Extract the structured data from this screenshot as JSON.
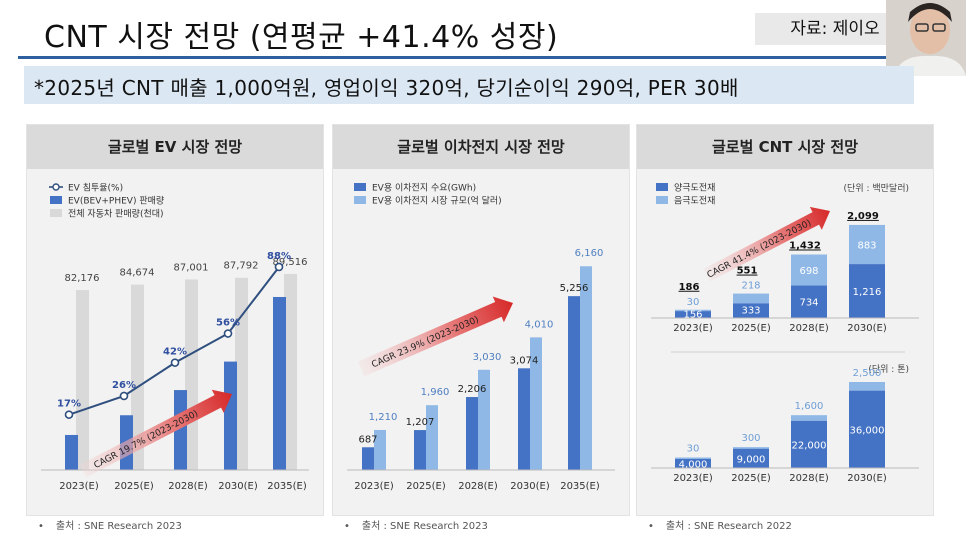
{
  "header": {
    "title": "CNT 시장 전망 (연평균 +41.4% 성장)",
    "source": "자료: 제이오",
    "subtitle": "*2025년 CNT 매출 1,000억원, 영업이익 320억, 당기순이익 290억, PER 30배"
  },
  "colors": {
    "dark_blue": "#4472c4",
    "light_blue": "#8fb8e6",
    "gray_bar": "#d9d9d9",
    "title_rule": "#2e5f9e",
    "subtitle_bg": "#dbe7f3",
    "line": "#2f4f7f"
  },
  "chart_data": [
    {
      "type": "bar",
      "title": "글로벌 EV 시장 전망",
      "categories": [
        "2023(E)",
        "2025(E)",
        "2028(E)",
        "2030(E)",
        "2035(E)"
      ],
      "series": [
        {
          "name": "EV 침투율(%)",
          "kind": "line",
          "values": [
            17,
            26,
            42,
            56,
            88
          ],
          "labels": [
            "17%",
            "26%",
            "42%",
            "56%",
            "88%"
          ]
        },
        {
          "name": "EV(BEV+PHEV) 판매량",
          "kind": "bar",
          "values": [
            16000,
            25000,
            36500,
            49500,
            79000
          ]
        },
        {
          "name": "전체 자동차 판매량(천대)",
          "kind": "bar",
          "values": [
            82176,
            84674,
            87001,
            87792,
            89516
          ],
          "labels": [
            "82,176",
            "84,674",
            "87,001",
            "87,792",
            "89,516"
          ]
        }
      ],
      "ylim": [
        0,
        100000
      ],
      "annotation": {
        "text": "CAGR 19.7% (2023-2030)"
      },
      "footnote": "출처 : SNE Research 2023"
    },
    {
      "type": "bar",
      "title": "글로벌 이차전지 시장 전망",
      "categories": [
        "2023(E)",
        "2025(E)",
        "2028(E)",
        "2030(E)",
        "2035(E)"
      ],
      "series": [
        {
          "name": "EV용 이차전지 수요(GWh)",
          "values": [
            687,
            1207,
            2206,
            3074,
            5256
          ],
          "labels": [
            "687",
            "1,207",
            "2,206",
            "3,074",
            "5,256"
          ]
        },
        {
          "name": "EV용 이차전지 시장 규모(억 달러)",
          "values": [
            1210,
            1960,
            3030,
            4010,
            6160
          ],
          "labels": [
            "1,210",
            "1,960",
            "3,030",
            "4,010",
            "6,160"
          ]
        }
      ],
      "ylim": [
        0,
        6500
      ],
      "annotation": {
        "text": "CAGR 23.9% (2023-2030)"
      },
      "footnote": "출처 : SNE Research 2023"
    },
    {
      "type": "bar",
      "title": "글로벌 CNT 시장 전망",
      "stacked": true,
      "unit": "(단위 : 백만달러)",
      "categories": [
        "2023(E)",
        "2025(E)",
        "2028(E)",
        "2030(E)"
      ],
      "series": [
        {
          "name": "양극도전재",
          "values": [
            156,
            333,
            734,
            1216
          ],
          "labels": [
            "156",
            "333",
            "734",
            "1,216"
          ]
        },
        {
          "name": "음극도전재",
          "values": [
            30,
            218,
            698,
            883
          ],
          "labels": [
            "30",
            "218",
            "698",
            "883"
          ]
        }
      ],
      "totals": [
        186,
        551,
        1432,
        2099
      ],
      "total_labels": [
        "186",
        "551",
        "1,432",
        "2,099"
      ],
      "ylim": [
        0,
        2300
      ],
      "annotation": {
        "text": "CAGR 41.4% (2023-2030)"
      },
      "footnote": "출처 : SNE Research 2022"
    },
    {
      "type": "bar",
      "stacked": true,
      "unit": "(단위 : 톤)",
      "categories": [
        "2023(E)",
        "2025(E)",
        "2028(E)",
        "2030(E)"
      ],
      "series": [
        {
          "values": [
            4000,
            9000,
            22000,
            36000
          ],
          "labels": [
            "4,000",
            "9,000",
            "22,000",
            "36,000"
          ]
        },
        {
          "values": [
            30,
            300,
            1600,
            2500
          ],
          "labels": [
            "30",
            "300",
            "1,600",
            "2,500"
          ]
        }
      ],
      "ylim": [
        0,
        40000
      ]
    }
  ]
}
